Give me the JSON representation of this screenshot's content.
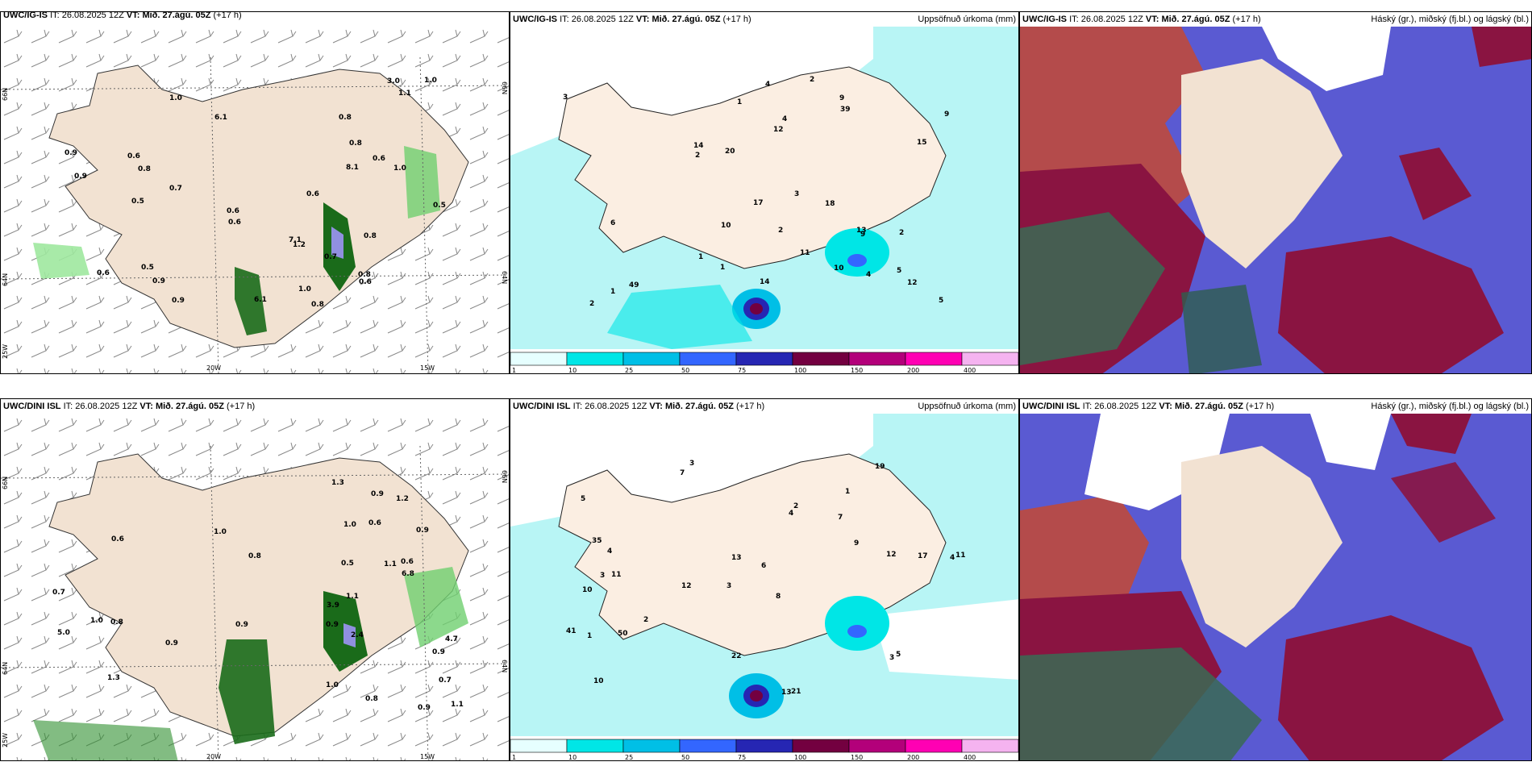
{
  "rows": [
    {
      "model": "UWC/IG-IS",
      "it_label": "IT:",
      "it_value": "26.08.2025 12Z",
      "vt_label": "VT:",
      "vt_value": "Mið. 27.ágú. 05Z",
      "lead": "(+17 h)",
      "wind_labels": [
        "0.8",
        "1.0",
        "0.5",
        "0.6",
        "0.6",
        "1.0",
        "0.5",
        "0.7",
        "0.6",
        "0.9",
        "0.6",
        "0.9",
        "0.6",
        "7.1",
        "8.1",
        "3.0",
        "0.9",
        "1.1",
        "0.8",
        "1.0",
        "0.8",
        "1.2",
        "0.9",
        "0.6",
        "0.6",
        "0.8",
        "0.5",
        "0.8",
        "6.1",
        "6.1",
        "0.7",
        "1.0",
        "0.8"
      ],
      "precip_labels": [
        "1",
        "2",
        "3",
        "2",
        "1",
        "2",
        "5",
        "9",
        "4",
        "1",
        "5",
        "2",
        "1",
        "4",
        "10",
        "14",
        "13",
        "6",
        "17",
        "9",
        "3",
        "49",
        "14",
        "18",
        "9",
        "39",
        "20",
        "12",
        "15",
        "11",
        "12",
        "10",
        "4",
        "2"
      ]
    },
    {
      "model": "UWC/DINI ISL",
      "it_label": "IT:",
      "it_value": "26.08.2025 12Z",
      "vt_label": "VT:",
      "vt_value": "Mið. 27.ágú. 05Z",
      "lead": "(+17 h)",
      "wind_labels": [
        "0.9",
        "4.7",
        "1.1",
        "0.9",
        "1.0",
        "0.6",
        "0.6",
        "0.8",
        "0.7",
        "0.8",
        "1.1",
        "3.9",
        "5.0",
        "2.4",
        "0.9",
        "0.9",
        "1.2",
        "1.0",
        "0.9",
        "1.0",
        "0.9",
        "0.7",
        "0.5",
        "1.3",
        "6.8",
        "1.3",
        "0.6",
        "1.0",
        "1.1",
        "0.8",
        "0.9"
      ],
      "precip_labels": [
        "3",
        "1",
        "4",
        "3",
        "8",
        "11",
        "5",
        "7",
        "10",
        "4",
        "6",
        "10",
        "7",
        "12",
        "13",
        "21",
        "22",
        "19",
        "9",
        "2",
        "4",
        "3",
        "11",
        "17",
        "41",
        "35",
        "13",
        "12",
        "5",
        "1",
        "3",
        "2",
        "50"
      ]
    }
  ],
  "precip_title": "Uppsöfnuð úrkoma (mm)",
  "cloud_title": "Háský (gr.), miðský (fj.bl.) og lágský (bl.)",
  "wind_ticks": {
    "lat_top": "66N",
    "lat_mid": "64N",
    "lat_bot": "25W",
    "lon1": "20W",
    "lon2": "15W",
    "right_top": "66N",
    "right_mid": "64N"
  },
  "legend": {
    "labels": [
      "1",
      "10",
      "25",
      "50",
      "75",
      "100",
      "150",
      "200",
      "400"
    ],
    "colors": [
      "#e6ffff",
      "#00e6e6",
      "#00bfe6",
      "#3366ff",
      "#2626b3",
      "#730040",
      "#b3007a",
      "#ff00b3",
      "#f5b3f0"
    ]
  },
  "colors": {
    "land": "#f7e9dc",
    "sea": "#ffffff",
    "cyan": "#b8f5f5",
    "green": "#b7f0b7",
    "dkgreen": "#1a6b1a",
    "cloud_high": "#b44b4b",
    "cloud_mid": "#5a5ad2",
    "cloud_low": "#8a1441"
  }
}
